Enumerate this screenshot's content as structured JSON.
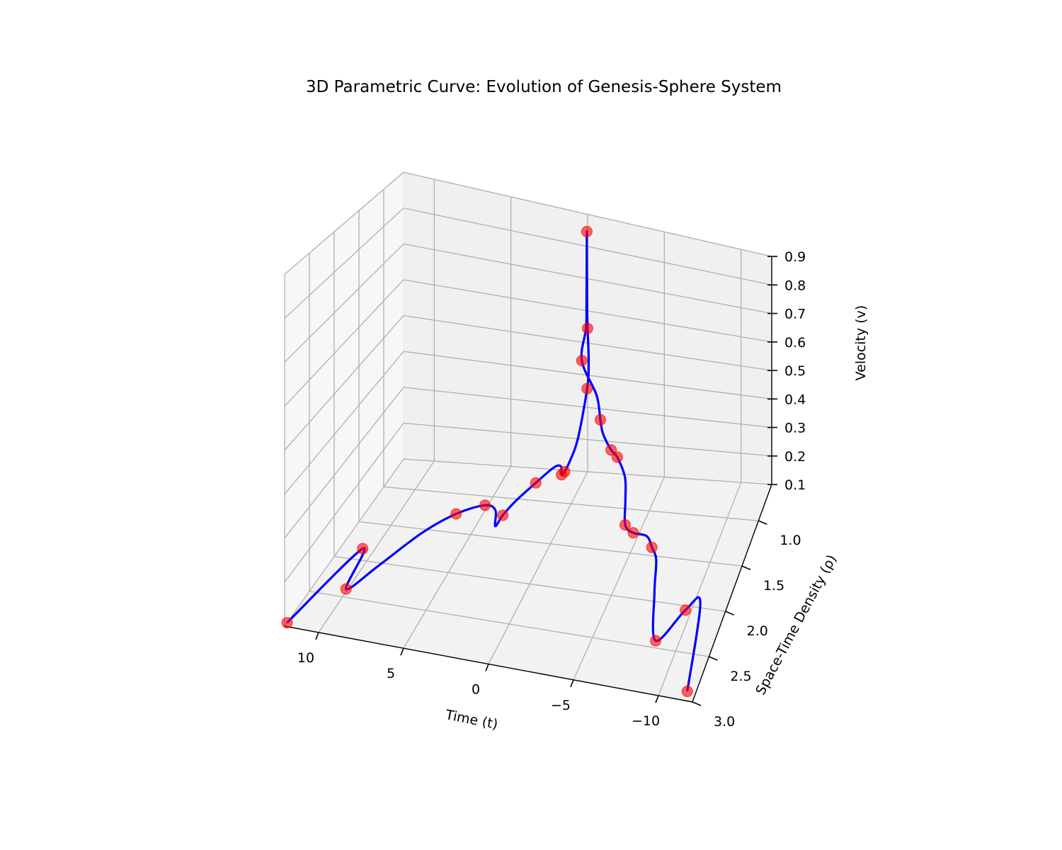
{
  "chart_data": {
    "type": "line",
    "title": "3D Parametric Curve: Evolution of Genesis-Sphere System",
    "xlabel": "Time (t)",
    "ylabel": "Space-Time Density (ρ)",
    "zlabel": "Velocity (v)",
    "xlim": [
      -12,
      12
    ],
    "ylim": [
      0.6,
      3.0
    ],
    "zlim": [
      0.1,
      0.9
    ],
    "x_ticks": [
      "10",
      "5",
      "0",
      "−5",
      "−10"
    ],
    "y_ticks": [
      "1.0",
      "1.5",
      "2.0",
      "2.5",
      "3.0"
    ],
    "z_ticks": [
      "0.1",
      "0.2",
      "0.3",
      "0.4",
      "0.5",
      "0.6",
      "0.7",
      "0.8",
      "0.9"
    ],
    "grid": true,
    "series": [
      {
        "kind": "curve",
        "color": "#0000ff",
        "points": [
          {
            "t": 12.0,
            "rho": 2.95,
            "v": 0.1
          },
          {
            "t": 10.4,
            "rho": 1.95,
            "v": 0.12
          },
          {
            "t": 9.8,
            "rho": 2.5,
            "v": 0.12
          },
          {
            "t": 8.9,
            "rho": 2.15,
            "v": 0.12
          },
          {
            "t": 7.5,
            "rho": 1.7,
            "v": 0.13
          },
          {
            "t": 6.2,
            "rho": 1.4,
            "v": 0.13
          },
          {
            "t": 4.8,
            "rho": 1.25,
            "v": 0.13
          },
          {
            "t": 4.0,
            "rho": 1.3,
            "v": 0.13
          },
          {
            "t": 3.6,
            "rho": 1.45,
            "v": 0.12
          },
          {
            "t": 3.4,
            "rho": 1.35,
            "v": 0.13
          },
          {
            "t": 3.1,
            "rho": 1.15,
            "v": 0.13
          },
          {
            "t": 2.4,
            "rho": 0.95,
            "v": 0.14
          },
          {
            "t": 1.7,
            "rho": 0.78,
            "v": 0.15
          },
          {
            "t": 1.3,
            "rho": 0.76,
            "v": 0.15
          },
          {
            "t": 1.1,
            "rho": 0.82,
            "v": 0.14
          },
          {
            "t": 0.9,
            "rho": 0.82,
            "v": 0.15
          },
          {
            "t": 0.6,
            "rho": 0.8,
            "v": 0.18
          },
          {
            "t": 0.2,
            "rho": 0.76,
            "v": 0.24
          },
          {
            "t": -0.1,
            "rho": 0.65,
            "v": 0.37
          },
          {
            "t": -0.15,
            "rho": 0.63,
            "v": 0.45
          },
          {
            "t": -0.05,
            "rho": 0.62,
            "v": 0.55
          },
          {
            "t": -0.02,
            "rho": 0.62,
            "v": 0.63
          },
          {
            "t": 0.0,
            "rho": 0.62,
            "v": 0.85
          },
          {
            "t": 0.02,
            "rho": 0.62,
            "v": 0.63
          },
          {
            "t": 0.05,
            "rho": 0.62,
            "v": 0.55
          },
          {
            "t": 0.3,
            "rho": 0.63,
            "v": 0.45
          },
          {
            "t": -0.9,
            "rho": 0.72,
            "v": 0.37
          },
          {
            "t": -1.2,
            "rho": 0.74,
            "v": 0.3
          },
          {
            "t": -1.4,
            "rho": 0.75,
            "v": 0.26
          },
          {
            "t": -2.0,
            "rho": 0.78,
            "v": 0.22
          },
          {
            "t": -2.5,
            "rho": 0.82,
            "v": 0.21
          },
          {
            "t": -3.2,
            "rho": 0.9,
            "v": 0.17
          },
          {
            "t": -3.6,
            "rho": 1.05,
            "v": 0.14
          },
          {
            "t": -4.2,
            "rho": 1.3,
            "v": 0.13
          },
          {
            "t": -4.9,
            "rho": 1.38,
            "v": 0.13
          },
          {
            "t": -5.8,
            "rho": 1.4,
            "v": 0.13
          },
          {
            "t": -6.4,
            "rho": 1.52,
            "v": 0.13
          },
          {
            "t": -6.9,
            "rho": 1.62,
            "v": 0.12
          },
          {
            "t": -7.6,
            "rho": 1.98,
            "v": 0.12
          },
          {
            "t": -8.8,
            "rho": 2.5,
            "v": 0.12
          },
          {
            "t": -9.8,
            "rho": 2.12,
            "v": 0.12
          },
          {
            "t": -10.5,
            "rho": 2.02,
            "v": 0.12
          },
          {
            "t": -11.5,
            "rho": 2.9,
            "v": 0.1
          }
        ]
      },
      {
        "kind": "markers",
        "color": "#ff0000",
        "points": [
          {
            "t": 12.0,
            "rho": 2.95,
            "v": 0.1
          },
          {
            "t": 10.4,
            "rho": 1.95,
            "v": 0.12
          },
          {
            "t": 9.8,
            "rho": 2.5,
            "v": 0.12
          },
          {
            "t": 6.2,
            "rho": 1.4,
            "v": 0.13
          },
          {
            "t": 4.8,
            "rho": 1.25,
            "v": 0.13
          },
          {
            "t": 3.4,
            "rho": 1.35,
            "v": 0.13
          },
          {
            "t": 2.4,
            "rho": 0.95,
            "v": 0.14
          },
          {
            "t": 1.1,
            "rho": 0.82,
            "v": 0.14
          },
          {
            "t": 0.9,
            "rho": 0.82,
            "v": 0.15
          },
          {
            "t": -0.1,
            "rho": 0.65,
            "v": 0.37
          },
          {
            "t": -0.05,
            "rho": 0.62,
            "v": 0.55
          },
          {
            "t": 0.0,
            "rho": 0.62,
            "v": 0.85
          },
          {
            "t": 0.3,
            "rho": 0.63,
            "v": 0.45
          },
          {
            "t": -1.2,
            "rho": 0.74,
            "v": 0.3
          },
          {
            "t": -2.0,
            "rho": 0.78,
            "v": 0.22
          },
          {
            "t": -2.5,
            "rho": 0.82,
            "v": 0.21
          },
          {
            "t": -4.2,
            "rho": 1.3,
            "v": 0.13
          },
          {
            "t": -4.9,
            "rho": 1.38,
            "v": 0.13
          },
          {
            "t": -6.4,
            "rho": 1.52,
            "v": 0.13
          },
          {
            "t": -8.8,
            "rho": 2.5,
            "v": 0.12
          },
          {
            "t": -9.8,
            "rho": 2.12,
            "v": 0.12
          },
          {
            "t": -11.5,
            "rho": 2.9,
            "v": 0.1
          }
        ]
      }
    ]
  }
}
